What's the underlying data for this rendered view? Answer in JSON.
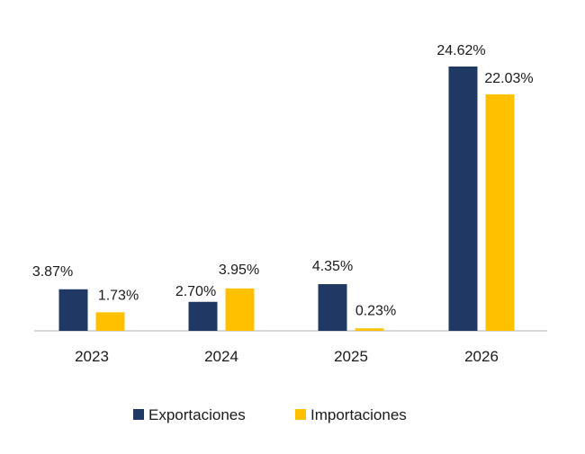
{
  "chart_data": {
    "type": "bar",
    "categories": [
      "2023",
      "2024",
      "2025",
      "2026"
    ],
    "series": [
      {
        "name": "Exportaciones",
        "values": [
          3.87,
          2.7,
          4.35,
          24.62
        ],
        "labels": [
          "3.87%",
          "2.70%",
          "4.35%",
          "24.62%"
        ],
        "color": "#1F3864"
      },
      {
        "name": "Importaciones",
        "values": [
          1.73,
          3.95,
          0.23,
          22.03
        ],
        "labels": [
          "1.73%",
          "3.95%",
          "0.23%",
          "22.03%"
        ],
        "color": "#FFC000"
      }
    ],
    "title": "",
    "xlabel": "",
    "ylabel": "",
    "ylim": [
      0,
      24.62
    ],
    "grid": false,
    "legend": "bottom",
    "axis_line_color": "#BFBFBF"
  }
}
